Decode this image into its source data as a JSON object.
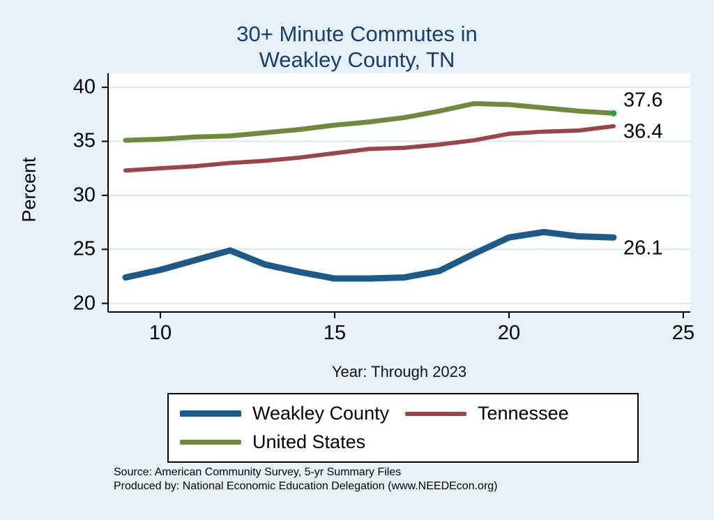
{
  "title": {
    "line1": "30+ Minute Commutes in",
    "line2": "Weakley County, TN"
  },
  "axes": {
    "ylabel": "Percent",
    "xlabel": "Year: Through 2023"
  },
  "footer": {
    "line1": "Source: American Community Survey, 5-yr Summary Files",
    "line2": "Produced by: National Economic Education Delegation (www.NEEDEcon.org)"
  },
  "colors": {
    "background": "#e6f0f7",
    "plot_bg": "#ffffff",
    "grid": "#d9e6f2",
    "axis": "#000000",
    "title": "#1b3c6e"
  },
  "chart_data": {
    "type": "line",
    "title": "30+ Minute Commutes in Weakley County, TN",
    "xlabel": "Year: Through 2023",
    "ylabel": "Percent",
    "x": [
      9,
      10,
      11,
      12,
      13,
      14,
      15,
      16,
      17,
      18,
      19,
      20,
      21,
      22,
      23
    ],
    "series": [
      {
        "name": "Weakley County",
        "color": "#1d5a8a",
        "width": 9,
        "values": [
          22.4,
          23.1,
          24.0,
          24.9,
          23.6,
          22.9,
          22.3,
          22.3,
          22.4,
          23.0,
          24.6,
          26.1,
          26.6,
          26.2,
          26.1
        ],
        "end_label": "26.1",
        "label_dy": 16
      },
      {
        "name": "Tennessee",
        "color": "#9b4449",
        "width": 6,
        "values": [
          32.3,
          32.5,
          32.7,
          33.0,
          33.2,
          33.5,
          33.9,
          34.3,
          34.4,
          34.7,
          35.1,
          35.7,
          35.9,
          36.0,
          36.4
        ],
        "end_label": "36.4",
        "label_dy": 8
      },
      {
        "name": "United States",
        "color": "#6f8a3d",
        "width": 7,
        "values": [
          35.1,
          35.2,
          35.4,
          35.5,
          35.8,
          36.1,
          36.5,
          36.8,
          37.2,
          37.8,
          38.5,
          38.4,
          38.1,
          37.8,
          37.6
        ],
        "end_label": "37.6",
        "label_dy": -18,
        "end_dot": true,
        "end_dot_color": "#2f9e44"
      }
    ],
    "xlim": [
      8.5,
      25.2
    ],
    "ylim": [
      19.2,
      41.3
    ],
    "xticks": [
      10,
      15,
      20,
      25
    ],
    "yticks": [
      20,
      25,
      30,
      35,
      40
    ],
    "grid": "horizontal",
    "legend_position": "bottom"
  }
}
